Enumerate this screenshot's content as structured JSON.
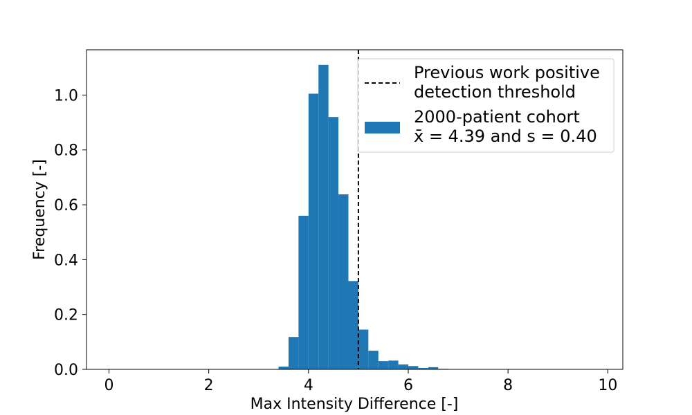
{
  "chart_data": {
    "type": "bar",
    "title": "",
    "xlabel": "Max Intensity Difference [-]",
    "ylabel": "Frequency [-]",
    "xlim": [
      -0.45,
      10.3
    ],
    "ylim": [
      0,
      1.165
    ],
    "xticks": [
      0,
      2,
      4,
      6,
      8,
      10
    ],
    "xtick_labels": [
      "0",
      "2",
      "4",
      "6",
      "8",
      "10"
    ],
    "yticks": [
      0.0,
      0.2,
      0.4,
      0.6,
      0.8,
      1.0
    ],
    "ytick_labels": [
      "0.0",
      "0.2",
      "0.4",
      "0.6",
      "0.8",
      "1.0"
    ],
    "grid": false,
    "legend_position": "top-right",
    "bar_color": "#1f77b4",
    "threshold_color": "#000000",
    "bin_width": 0.2,
    "series": [
      {
        "name": "2000-patient cohort",
        "bins_start": [
          3.4,
          3.6,
          3.8,
          4.0,
          4.2,
          4.4,
          4.6,
          4.8,
          5.0,
          5.2,
          5.4,
          5.6,
          5.8,
          6.0,
          6.2,
          6.4,
          6.6
        ],
        "values": [
          0.01,
          0.118,
          0.56,
          1.005,
          1.11,
          0.92,
          0.638,
          0.322,
          0.145,
          0.068,
          0.03,
          0.032,
          0.018,
          0.012,
          0.005,
          0.008,
          0.002
        ]
      }
    ],
    "threshold": {
      "x": 5.0,
      "legend_line1": "Previous work positive",
      "legend_line2": "detection threshold"
    },
    "legend": {
      "hist_line1": "2000-patient cohort",
      "hist_line2": "x̄ = 4.39 and s = 0.40"
    }
  }
}
